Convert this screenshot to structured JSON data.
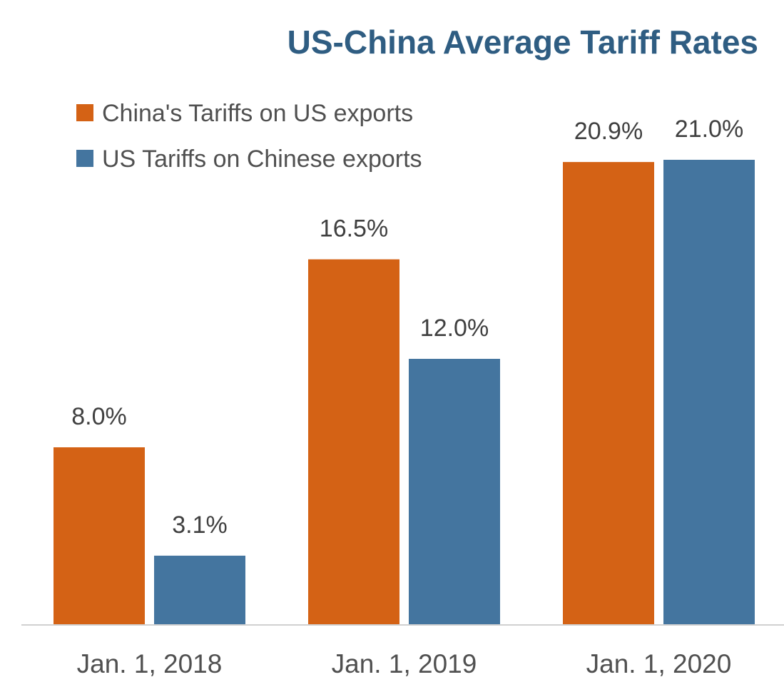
{
  "chart_data": {
    "type": "bar",
    "title": "US-China Average Tariff Rates",
    "categories": [
      "Jan. 1, 2018",
      "Jan. 1, 2019",
      "Jan. 1, 2020"
    ],
    "series": [
      {
        "name": "China's Tariffs on US exports",
        "color": "#d46215",
        "values": [
          8.0,
          16.5,
          20.9
        ],
        "labels": [
          "8.0%",
          "16.5%",
          "20.9%"
        ]
      },
      {
        "name": "US Tariffs on Chinese exports",
        "color": "#44759f",
        "values": [
          3.1,
          12.0,
          21.0
        ],
        "labels": [
          "3.1%",
          "12.0%",
          "21.0%"
        ]
      }
    ],
    "xlabel": "",
    "ylabel": "",
    "ylim": [
      0,
      21.5
    ],
    "grid": false,
    "legend": "top-left"
  }
}
